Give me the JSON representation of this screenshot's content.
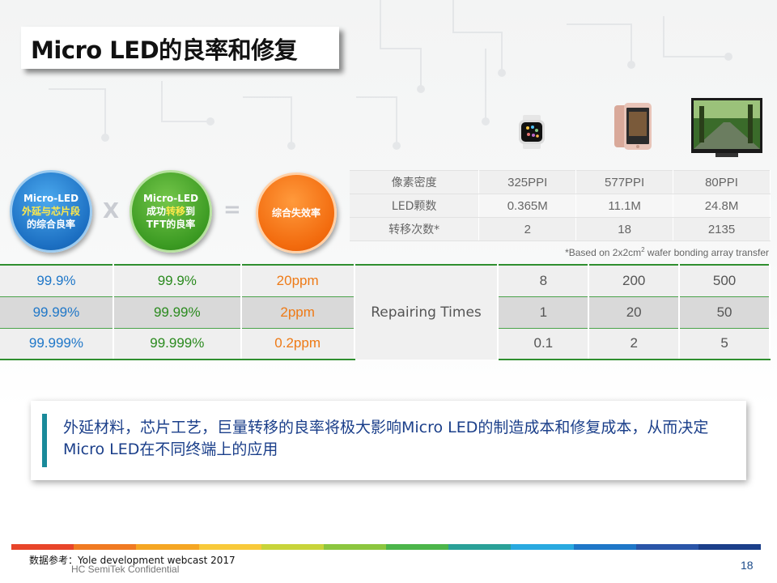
{
  "title": "Micro LED的良率和修复",
  "circles": {
    "c1": {
      "line1": "Micro-LED",
      "line2": "外延与芯片段",
      "line3": "的综合良率"
    },
    "c2": {
      "line1": "Micro-LED",
      "line2a": "成功",
      "line2b": "转移",
      "line2c": "到",
      "line3": "TFT的良率"
    },
    "c3": {
      "line1": "综合失效率"
    },
    "op_multiply": "X",
    "op_equals": "="
  },
  "device_table": {
    "rows": [
      {
        "label": "像素密度",
        "values": [
          "325PPI",
          "577PPI",
          "80PPI"
        ]
      },
      {
        "label": "LED颗数",
        "values": [
          "0.365M",
          "11.1M",
          "24.8M"
        ]
      },
      {
        "label": "转移次数*",
        "values": [
          "2",
          "18",
          "2135"
        ]
      }
    ],
    "footnote_pre": "*Based on 2x2cm",
    "footnote_sup": "2",
    "footnote_post": " wafer bonding array transfer"
  },
  "yield_table": {
    "repair_label": "Repairing Times",
    "rows": [
      {
        "epi": "99.9%",
        "transfer": "99.9%",
        "failure": "20ppm",
        "repairs": [
          "8",
          "200",
          "500"
        ]
      },
      {
        "epi": "99.99%",
        "transfer": "99.99%",
        "failure": "2ppm",
        "repairs": [
          "1",
          "20",
          "50"
        ]
      },
      {
        "epi": "99.999%",
        "transfer": "99.999%",
        "failure": "0.2ppm",
        "repairs": [
          "0.1",
          "2",
          "5"
        ]
      }
    ]
  },
  "note": "外延材料，芯片工艺，巨量转移的良率将极大影响Micro  LED的制造成本和修复成本，从而决定Micro LED在不同终端上的应用",
  "footer": {
    "source": "数据参考：Yole development webcast 2017",
    "confidential": "HC SemiTek Confidential",
    "page": "18"
  },
  "colors": {
    "accent_green": "#2f8f2f",
    "blue": "#1f77c8",
    "green": "#2a8a1e",
    "orange": "#ee7a16",
    "note_text": "#1b3f8a"
  }
}
